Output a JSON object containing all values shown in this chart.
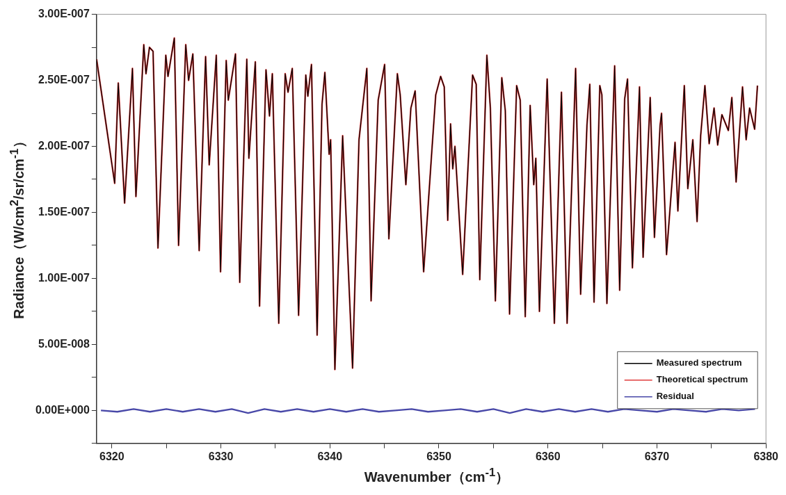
{
  "chart_data": {
    "type": "line",
    "xlabel": "Wavenumber（cm$^{-1}$）",
    "ylabel": "Radiance（W/cm$^{2}$/sr/cm$^{-1}$）",
    "grid": false,
    "legend": "bottom right",
    "marker": "none",
    "line_style": "solid",
    "xlim": [
      6318.6,
      6380
    ],
    "xticks": [
      6320,
      {
        "value": 6325,
        "label": null
      },
      6330,
      {
        "value": 6335,
        "label": null
      },
      6340,
      {
        "value": 6345,
        "label": null
      },
      6350,
      {
        "value": 6355,
        "label": null
      },
      6360,
      {
        "value": 6365,
        "label": null
      },
      6370,
      {
        "value": 6375,
        "label": null
      },
      6380
    ],
    "ylim": [
      -2.5e-08,
      3e-07
    ],
    "yticks": [
      {
        "value": -2.5e-08,
        "label": null
      },
      {
        "value": 0,
        "label": "0.00E+000"
      },
      {
        "value": 2.5e-08,
        "label": null
      },
      {
        "value": 5e-08,
        "label": "5.00E-008"
      },
      {
        "value": 7.5e-08,
        "label": null
      },
      {
        "value": 1e-07,
        "label": "1.00E-007"
      },
      {
        "value": 1.25e-07,
        "label": null
      },
      {
        "value": 1.5e-07,
        "label": "1.50E-007"
      },
      {
        "value": 1.75e-07,
        "label": null
      },
      {
        "value": 2e-07,
        "label": "2.00E-007"
      },
      {
        "value": 2.25e-07,
        "label": null
      },
      {
        "value": 2.5e-07,
        "label": "2.50E-007"
      },
      {
        "value": 2.75e-07,
        "label": null
      },
      {
        "value": 3e-07,
        "label": "3.00E-007"
      }
    ],
    "x": [
      6318.6,
      6320.26,
      6320.59,
      6321.17,
      6321.89,
      6322.21,
      6322.93,
      6323.13,
      6323.45,
      6323.78,
      6324.23,
      6324.95,
      6325.15,
      6325.73,
      6326.12,
      6326.78,
      6327.04,
      6327.43,
      6328.01,
      6328.6,
      6328.93,
      6329.58,
      6329.97,
      6330.49,
      6330.68,
      6331.34,
      6331.73,
      6332.38,
      6332.57,
      6333.16,
      6333.55,
      6334.14,
      6334.46,
      6334.72,
      6335.31,
      6335.9,
      6336.16,
      6336.55,
      6337.13,
      6337.79,
      6337.98,
      6338.31,
      6338.83,
      6339.28,
      6339.54,
      6339.93,
      6340.07,
      6340.46,
      6341.17,
      6342.08,
      6342.67,
      6343.39,
      6343.78,
      6344.43,
      6345.02,
      6345.41,
      6346.19,
      6346.45,
      6346.97,
      6347.43,
      6347.82,
      6348.6,
      6349.38,
      6349.71,
      6350.16,
      6350.49,
      6350.81,
      6351.07,
      6351.27,
      6351.47,
      6352.18,
      6353.09,
      6353.42,
      6353.75,
      6354.4,
      6354.72,
      6355.18,
      6355.77,
      6356.09,
      6356.48,
      6357.13,
      6357.46,
      6357.92,
      6358.37,
      6358.7,
      6358.89,
      6359.22,
      6359.93,
      6360.59,
      6361.24,
      6361.76,
      6362.54,
      6363,
      6363.58,
      6363.84,
      6364.23,
      6364.76,
      6364.95,
      6365.41,
      6366.12,
      6366.58,
      6367.04,
      6367.3,
      6367.75,
      6368.4,
      6368.73,
      6369.38,
      6369.77,
      6370.29,
      6370.42,
      6370.88,
      6371.34,
      6371.66,
      6371.92,
      6372.51,
      6372.83,
      6373.29,
      6373.68,
      6374.01,
      6374.4,
      6374.79,
      6375.24,
      6375.57,
      6375.96,
      6376.55,
      6376.87,
      6377.26,
      6377.85,
      6378.18,
      6378.5,
      6378.96,
      6379.22
    ],
    "series": [
      {
        "name": "Measured spectrum",
        "color": "#000000",
        "values": [
          2.66e-07,
          1.72e-07,
          2.48e-07,
          1.57e-07,
          2.59e-07,
          1.62e-07,
          2.77e-07,
          2.55e-07,
          2.75e-07,
          2.72e-07,
          1.23e-07,
          2.69e-07,
          2.53e-07,
          2.82e-07,
          1.25e-07,
          2.77e-07,
          2.5e-07,
          2.7e-07,
          1.21e-07,
          2.68e-07,
          1.86e-07,
          2.69e-07,
          1.05e-07,
          2.65e-07,
          2.35e-07,
          2.7e-07,
          9.7e-08,
          2.66e-07,
          1.91e-07,
          2.64e-07,
          7.9e-08,
          2.58e-07,
          2.23e-07,
          2.55e-07,
          6.6e-08,
          2.55e-07,
          2.41e-07,
          2.59e-07,
          7.2e-08,
          2.54e-07,
          2.38e-07,
          2.62e-07,
          5.7e-08,
          2.32e-07,
          2.56e-07,
          1.94e-07,
          2.05e-07,
          3.1e-08,
          2.08e-07,
          3.2e-08,
          2.05e-07,
          2.59e-07,
          8.3e-08,
          2.35e-07,
          2.62e-07,
          1.3e-07,
          2.55e-07,
          2.39e-07,
          1.71e-07,
          2.29e-07,
          2.42e-07,
          1.05e-07,
          2e-07,
          2.39e-07,
          2.53e-07,
          2.45e-07,
          1.44e-07,
          2.17e-07,
          1.83e-07,
          2e-07,
          1.03e-07,
          2.54e-07,
          2.47e-07,
          9.9e-08,
          2.69e-07,
          2.29e-07,
          8.3e-08,
          2.52e-07,
          2.27e-07,
          7.3e-08,
          2.46e-07,
          2.35e-07,
          7.1e-08,
          2.31e-07,
          1.71e-07,
          1.91e-07,
          7.5e-08,
          2.51e-07,
          6.6e-08,
          2.41e-07,
          6.6e-08,
          2.59e-07,
          8.8e-08,
          2.16e-07,
          2.47e-07,
          8.2e-08,
          2.46e-07,
          2.39e-07,
          8.1e-08,
          2.61e-07,
          9.1e-08,
          2.36e-07,
          2.51e-07,
          1.08e-07,
          2.45e-07,
          1.16e-07,
          2.37e-07,
          1.31e-07,
          2.16e-07,
          2.25e-07,
          1.18e-07,
          1.68e-07,
          2.03e-07,
          1.51e-07,
          2.46e-07,
          1.68e-07,
          2.05e-07,
          1.43e-07,
          2.08e-07,
          2.46e-07,
          2.02e-07,
          2.29e-07,
          2.01e-07,
          2.24e-07,
          2.12e-07,
          2.37e-07,
          1.73e-07,
          2.45e-07,
          2.05e-07,
          2.29e-07,
          2.13e-07,
          2.46e-07
        ]
      },
      {
        "name": "Theoretical spectrum",
        "color": "#e03c3c",
        "values": [
          2.66e-07,
          1.72e-07,
          2.48e-07,
          1.57e-07,
          2.59e-07,
          1.62e-07,
          2.77e-07,
          2.55e-07,
          2.75e-07,
          2.72e-07,
          1.23e-07,
          2.69e-07,
          2.53e-07,
          2.82e-07,
          1.25e-07,
          2.77e-07,
          2.5e-07,
          2.7e-07,
          1.21e-07,
          2.68e-07,
          1.86e-07,
          2.69e-07,
          1.05e-07,
          2.65e-07,
          2.35e-07,
          2.7e-07,
          9.7e-08,
          2.66e-07,
          1.91e-07,
          2.64e-07,
          7.9e-08,
          2.58e-07,
          2.23e-07,
          2.55e-07,
          6.6e-08,
          2.55e-07,
          2.41e-07,
          2.59e-07,
          7.2e-08,
          2.54e-07,
          2.38e-07,
          2.62e-07,
          5.7e-08,
          2.32e-07,
          2.56e-07,
          1.94e-07,
          2.05e-07,
          3.1e-08,
          2.08e-07,
          3.2e-08,
          2.05e-07,
          2.59e-07,
          8.3e-08,
          2.35e-07,
          2.62e-07,
          1.3e-07,
          2.55e-07,
          2.39e-07,
          1.71e-07,
          2.29e-07,
          2.42e-07,
          1.05e-07,
          2e-07,
          2.39e-07,
          2.53e-07,
          2.45e-07,
          1.44e-07,
          2.17e-07,
          1.83e-07,
          2e-07,
          1.03e-07,
          2.54e-07,
          2.47e-07,
          9.9e-08,
          2.69e-07,
          2.29e-07,
          8.3e-08,
          2.52e-07,
          2.27e-07,
          7.3e-08,
          2.46e-07,
          2.35e-07,
          7.1e-08,
          2.31e-07,
          1.71e-07,
          1.91e-07,
          7.5e-08,
          2.51e-07,
          6.6e-08,
          2.41e-07,
          6.6e-08,
          2.59e-07,
          8.8e-08,
          2.16e-07,
          2.47e-07,
          8.2e-08,
          2.46e-07,
          2.39e-07,
          8.1e-08,
          2.61e-07,
          9.1e-08,
          2.36e-07,
          2.51e-07,
          1.08e-07,
          2.45e-07,
          1.16e-07,
          2.37e-07,
          1.31e-07,
          2.16e-07,
          2.25e-07,
          1.18e-07,
          1.68e-07,
          2.03e-07,
          1.51e-07,
          2.46e-07,
          1.68e-07,
          2.05e-07,
          1.43e-07,
          2.08e-07,
          2.46e-07,
          2.02e-07,
          2.29e-07,
          2.01e-07,
          2.24e-07,
          2.12e-07,
          2.37e-07,
          1.73e-07,
          2.45e-07,
          2.05e-07,
          2.29e-07,
          2.13e-07,
          2.46e-07
        ]
      },
      {
        "name": "Residual",
        "color": "#4848a8",
        "x": [
          6319,
          6320.5,
          6322,
          6323.5,
          6325,
          6326.5,
          6328,
          6329.5,
          6331,
          6332.5,
          6334,
          6335.5,
          6337,
          6338.5,
          6340,
          6341.5,
          6343,
          6344.5,
          6346,
          6347.5,
          6349,
          6350.5,
          6352,
          6353.5,
          6355,
          6356.5,
          6358,
          6359.5,
          6361,
          6362.5,
          6364,
          6365.5,
          6367,
          6368.5,
          6370,
          6371.5,
          6373,
          6374.5,
          6376,
          6377.5,
          6379
        ],
        "values": [
          0,
          -1e-09,
          1e-09,
          -1e-09,
          1e-09,
          -1e-09,
          1e-09,
          -1e-09,
          1e-09,
          -2e-09,
          1e-09,
          -1e-09,
          1e-09,
          -1e-09,
          1e-09,
          -1e-09,
          1e-09,
          -1e-09,
          0,
          1e-09,
          -1e-09,
          0,
          1e-09,
          -1e-09,
          1e-09,
          -2e-09,
          1e-09,
          -1e-09,
          1e-09,
          -1e-09,
          1e-09,
          -1e-09,
          1e-09,
          0,
          -1e-09,
          1e-09,
          0,
          -1e-09,
          1e-09,
          0,
          1e-09
        ]
      }
    ]
  }
}
